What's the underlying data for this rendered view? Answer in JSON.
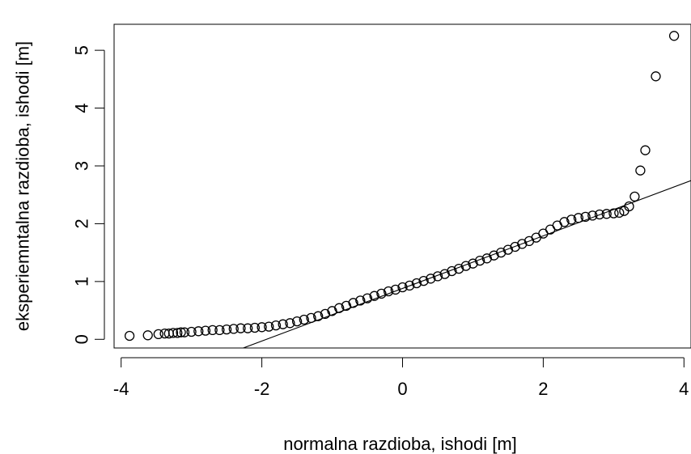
{
  "chart_data": {
    "type": "scatter",
    "title": "",
    "xlabel": "normalna razdioba, ishodi [m]",
    "ylabel": "eksperiemntalna razdioba, ishodi [m]",
    "xlim": [
      -4.1,
      4.1
    ],
    "ylim": [
      -0.15,
      5.45
    ],
    "x_ticks": [
      -4,
      -2,
      0,
      2,
      4
    ],
    "x_tick_labels": [
      "-4",
      "-2",
      "0",
      "2",
      "4"
    ],
    "y_ticks": [
      0,
      1,
      2,
      3,
      4,
      5
    ],
    "y_tick_labels": [
      "0",
      "1",
      "2",
      "3",
      "4",
      "5"
    ],
    "grid": false,
    "legend": "none",
    "reference_line": {
      "intercept": 0.88,
      "slope": 0.455
    },
    "points": [
      {
        "x": -3.88,
        "y": 0.06
      },
      {
        "x": -3.62,
        "y": 0.07
      },
      {
        "x": -3.47,
        "y": 0.09
      },
      {
        "x": -3.38,
        "y": 0.1
      },
      {
        "x": -3.32,
        "y": 0.1
      },
      {
        "x": -3.26,
        "y": 0.11
      },
      {
        "x": -3.2,
        "y": 0.11
      },
      {
        "x": -3.15,
        "y": 0.12
      },
      {
        "x": -3.1,
        "y": 0.12
      },
      {
        "x": -3.0,
        "y": 0.13
      },
      {
        "x": -2.9,
        "y": 0.14
      },
      {
        "x": -2.8,
        "y": 0.15
      },
      {
        "x": -2.7,
        "y": 0.16
      },
      {
        "x": -2.6,
        "y": 0.16
      },
      {
        "x": -2.5,
        "y": 0.17
      },
      {
        "x": -2.4,
        "y": 0.18
      },
      {
        "x": -2.3,
        "y": 0.19
      },
      {
        "x": -2.2,
        "y": 0.19
      },
      {
        "x": -2.1,
        "y": 0.2
      },
      {
        "x": -2.0,
        "y": 0.21
      },
      {
        "x": -1.9,
        "y": 0.22
      },
      {
        "x": -1.8,
        "y": 0.24
      },
      {
        "x": -1.7,
        "y": 0.26
      },
      {
        "x": -1.6,
        "y": 0.28
      },
      {
        "x": -1.5,
        "y": 0.31
      },
      {
        "x": -1.4,
        "y": 0.34
      },
      {
        "x": -1.3,
        "y": 0.37
      },
      {
        "x": -1.2,
        "y": 0.4
      },
      {
        "x": -1.1,
        "y": 0.44
      },
      {
        "x": -1.0,
        "y": 0.49
      },
      {
        "x": -0.9,
        "y": 0.54
      },
      {
        "x": -0.8,
        "y": 0.58
      },
      {
        "x": -0.7,
        "y": 0.63
      },
      {
        "x": -0.6,
        "y": 0.67
      },
      {
        "x": -0.5,
        "y": 0.71
      },
      {
        "x": -0.4,
        "y": 0.75
      },
      {
        "x": -0.3,
        "y": 0.79
      },
      {
        "x": -0.2,
        "y": 0.83
      },
      {
        "x": -0.1,
        "y": 0.86
      },
      {
        "x": 0.0,
        "y": 0.9
      },
      {
        "x": 0.1,
        "y": 0.93
      },
      {
        "x": 0.2,
        "y": 0.97
      },
      {
        "x": 0.3,
        "y": 1.01
      },
      {
        "x": 0.4,
        "y": 1.05
      },
      {
        "x": 0.5,
        "y": 1.09
      },
      {
        "x": 0.6,
        "y": 1.13
      },
      {
        "x": 0.7,
        "y": 1.18
      },
      {
        "x": 0.8,
        "y": 1.22
      },
      {
        "x": 0.9,
        "y": 1.27
      },
      {
        "x": 1.0,
        "y": 1.31
      },
      {
        "x": 1.1,
        "y": 1.36
      },
      {
        "x": 1.2,
        "y": 1.4
      },
      {
        "x": 1.3,
        "y": 1.45
      },
      {
        "x": 1.4,
        "y": 1.5
      },
      {
        "x": 1.5,
        "y": 1.55
      },
      {
        "x": 1.6,
        "y": 1.6
      },
      {
        "x": 1.7,
        "y": 1.65
      },
      {
        "x": 1.8,
        "y": 1.7
      },
      {
        "x": 1.9,
        "y": 1.76
      },
      {
        "x": 2.0,
        "y": 1.83
      },
      {
        "x": 2.1,
        "y": 1.9
      },
      {
        "x": 2.2,
        "y": 1.97
      },
      {
        "x": 2.3,
        "y": 2.03
      },
      {
        "x": 2.4,
        "y": 2.07
      },
      {
        "x": 2.5,
        "y": 2.1
      },
      {
        "x": 2.6,
        "y": 2.12
      },
      {
        "x": 2.7,
        "y": 2.14
      },
      {
        "x": 2.8,
        "y": 2.16
      },
      {
        "x": 2.9,
        "y": 2.17
      },
      {
        "x": 3.0,
        "y": 2.18
      },
      {
        "x": 3.08,
        "y": 2.19
      },
      {
        "x": 3.15,
        "y": 2.22
      },
      {
        "x": 3.22,
        "y": 2.3
      },
      {
        "x": 3.3,
        "y": 2.47
      },
      {
        "x": 3.38,
        "y": 2.92
      },
      {
        "x": 3.45,
        "y": 3.27
      },
      {
        "x": 3.6,
        "y": 4.55
      },
      {
        "x": 3.86,
        "y": 5.25
      }
    ]
  }
}
